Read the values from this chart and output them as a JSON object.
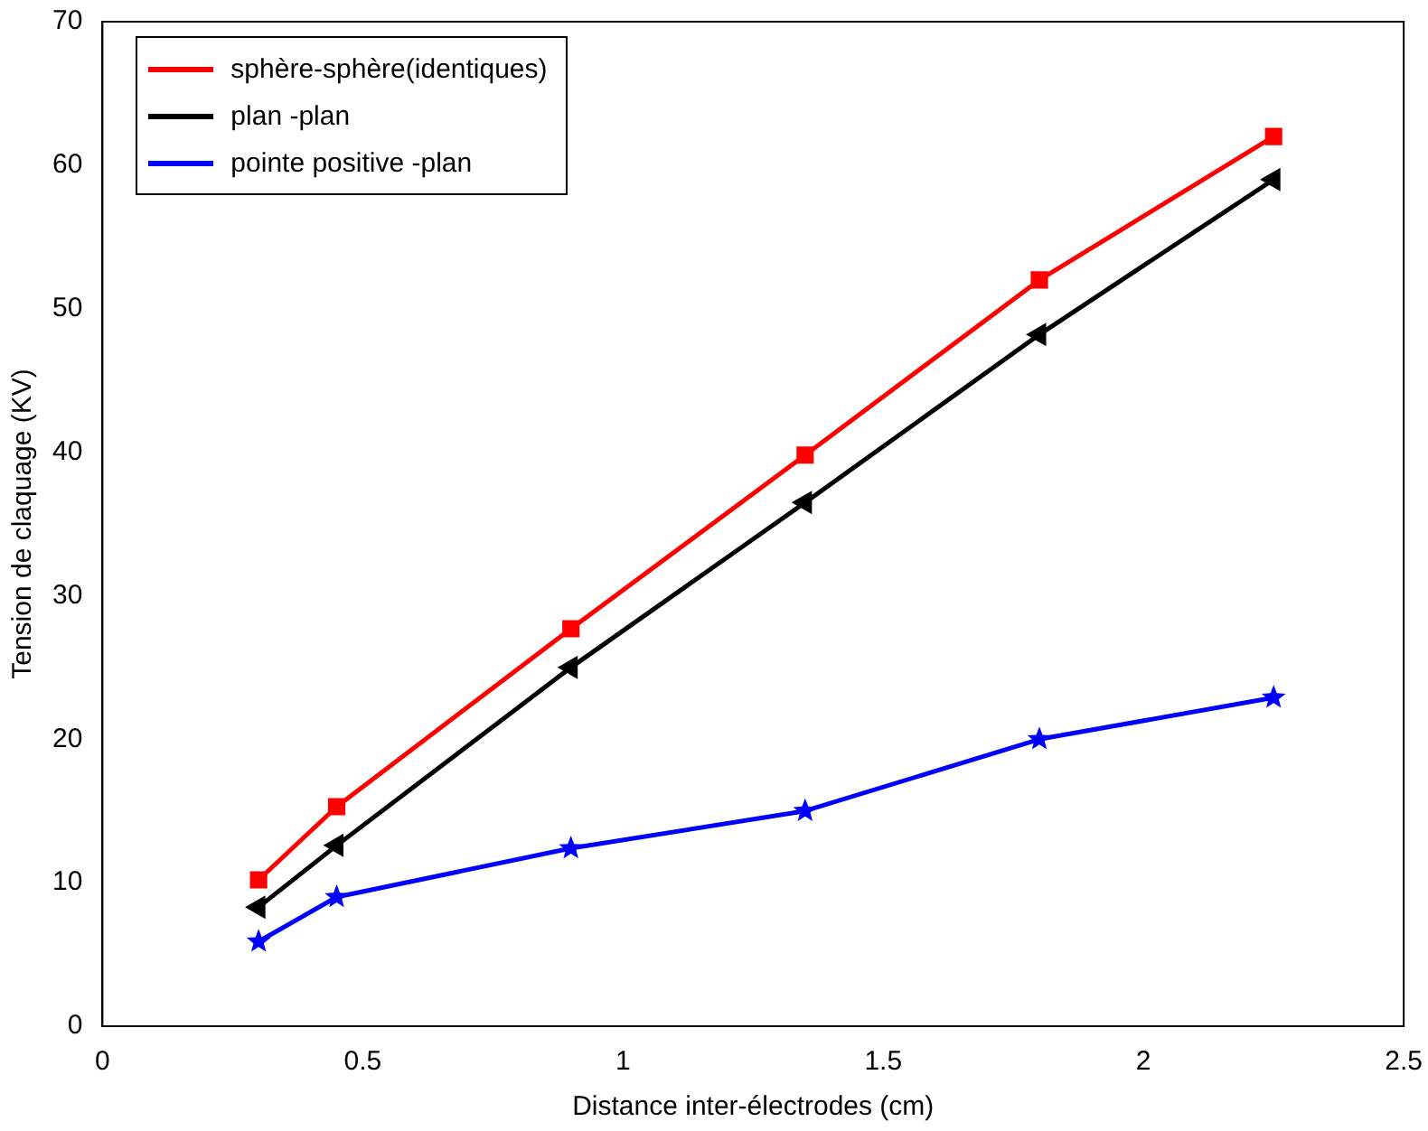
{
  "chart_data": {
    "type": "line",
    "xlabel": "Distance inter-électrodes (cm)",
    "ylabel": "Tension de claquage (KV)",
    "x": [
      0.3,
      0.45,
      0.9,
      1.35,
      1.8,
      2.25
    ],
    "series": [
      {
        "name": "sphère-sphère(identiques)",
        "color": "#ff0000",
        "marker": "square",
        "values": [
          10.2,
          15.3,
          27.7,
          39.8,
          52,
          62
        ]
      },
      {
        "name": "plan -plan",
        "color": "#000000",
        "marker": "triangle",
        "values": [
          8.3,
          12.6,
          25,
          36.5,
          48.2,
          59
        ]
      },
      {
        "name": "pointe positive -plan",
        "color": "#0000ff",
        "marker": "star",
        "values": [
          5.9,
          9,
          12.4,
          15,
          20,
          22.9
        ]
      }
    ],
    "xlim": [
      0,
      2.5
    ],
    "xticks": [
      0,
      0.5,
      1,
      1.5,
      2,
      2.5
    ],
    "ylim": [
      0,
      70
    ],
    "yticks": [
      0,
      10,
      20,
      30,
      40,
      50,
      60,
      70
    ],
    "grid": false,
    "legend": "top left",
    "line_style": "solid"
  }
}
